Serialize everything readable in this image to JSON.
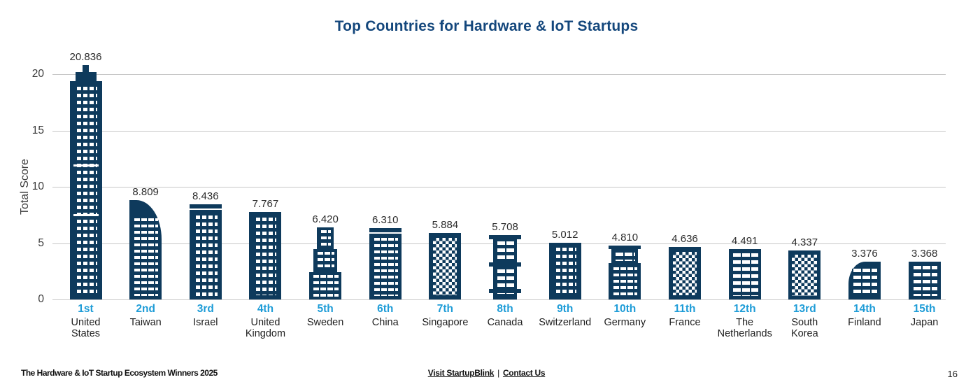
{
  "chart_data": {
    "type": "bar",
    "title": "Top Countries for Hardware & IoT Startups",
    "xlabel": "",
    "ylabel": "Total Score",
    "ylim": [
      0,
      20
    ],
    "yticks": [
      0,
      5,
      10,
      15,
      20
    ],
    "grid": "horizontal",
    "legend": "none",
    "bar_style": "building-pictogram",
    "bar_color": "#0e3a5c",
    "rank_labels": [
      "1st",
      "2nd",
      "3rd",
      "4th",
      "5th",
      "6th",
      "7th",
      "8th",
      "9th",
      "10th",
      "11th",
      "12th",
      "13rd",
      "14th",
      "15th"
    ],
    "categories": [
      "United States",
      "Taiwan",
      "Israel",
      "United Kingdom",
      "Sweden",
      "China",
      "Singapore",
      "Canada",
      "Switzerland",
      "Germany",
      "France",
      "The Netherlands",
      "South Korea",
      "Finland",
      "Japan"
    ],
    "values": [
      20.836,
      8.809,
      8.436,
      7.767,
      6.42,
      6.31,
      5.884,
      5.708,
      5.012,
      4.81,
      4.636,
      4.491,
      4.337,
      3.376,
      3.368
    ]
  },
  "colors": {
    "navy": "#0e3a5c",
    "rank_blue": "#1e9cd7",
    "grid": "#c7c7c7",
    "title": "#14477c"
  },
  "footer": {
    "left": "The Hardware & IoT Startup Ecosystem Winners 2025",
    "links": [
      {
        "label": "Visit StartupBlink"
      },
      {
        "label": "Contact Us"
      }
    ],
    "separator": "|",
    "page_number": "16"
  }
}
